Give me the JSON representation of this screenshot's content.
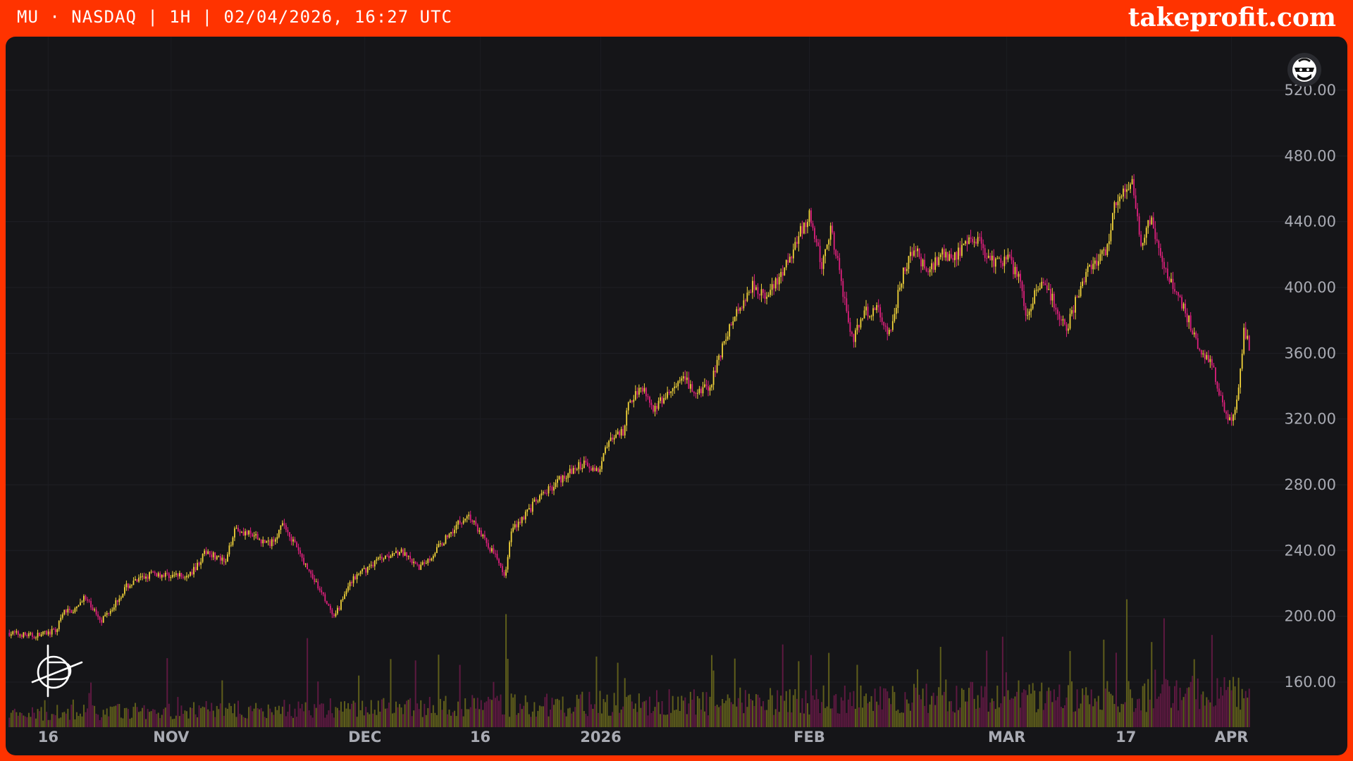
{
  "header": {
    "ticker_line": "MU · NASDAQ | 1H | 02/04/2026, 16:27 UTC",
    "brand": "takeprofit.com"
  },
  "colors": {
    "frame": "#ff3300",
    "background": "#151518",
    "up_candle": "#f5d63a",
    "down_candle": "#e0207e",
    "up_volume": "#6b6a1c",
    "down_volume": "#6a1a48",
    "axis_text": "#a9abb3"
  },
  "icons": {
    "top_right": "ninja-avatar-icon",
    "bottom_left": "takeprofit-logo-icon"
  },
  "chart_data": {
    "type": "candlestick",
    "interval": "1H",
    "grid": true,
    "y_axis_position": "right",
    "ylim": [
      140,
      530
    ],
    "yticks": [
      520,
      480,
      440,
      400,
      360,
      320,
      280,
      240,
      200,
      160
    ],
    "ytick_labels": [
      "520.00",
      "480.00",
      "440.00",
      "400.00",
      "360.00",
      "320.00",
      "280.00",
      "240.00",
      "200.00",
      "160.00"
    ],
    "xticks": [
      {
        "label": "16",
        "t": 0.032
      },
      {
        "label": "NOV",
        "t": 0.131
      },
      {
        "label": "DEC",
        "t": 0.287
      },
      {
        "label": "16",
        "t": 0.38
      },
      {
        "label": "2026",
        "t": 0.477
      },
      {
        "label": "FEB",
        "t": 0.645
      },
      {
        "label": "MAR",
        "t": 0.804
      },
      {
        "label": "17",
        "t": 0.9
      },
      {
        "label": "APR",
        "t": 0.985
      }
    ],
    "price_path": [
      {
        "t": 0.0,
        "p": 190
      },
      {
        "t": 0.02,
        "p": 188
      },
      {
        "t": 0.038,
        "p": 191
      },
      {
        "t": 0.045,
        "p": 203
      },
      {
        "t": 0.055,
        "p": 204
      },
      {
        "t": 0.06,
        "p": 212
      },
      {
        "t": 0.075,
        "p": 198
      },
      {
        "t": 0.085,
        "p": 207
      },
      {
        "t": 0.095,
        "p": 218
      },
      {
        "t": 0.115,
        "p": 226
      },
      {
        "t": 0.13,
        "p": 225
      },
      {
        "t": 0.145,
        "p": 224
      },
      {
        "t": 0.16,
        "p": 240
      },
      {
        "t": 0.175,
        "p": 232
      },
      {
        "t": 0.182,
        "p": 254
      },
      {
        "t": 0.21,
        "p": 244
      },
      {
        "t": 0.222,
        "p": 256
      },
      {
        "t": 0.24,
        "p": 230
      },
      {
        "t": 0.255,
        "p": 210
      },
      {
        "t": 0.262,
        "p": 198
      },
      {
        "t": 0.275,
        "p": 221
      },
      {
        "t": 0.3,
        "p": 236
      },
      {
        "t": 0.315,
        "p": 240
      },
      {
        "t": 0.33,
        "p": 229
      },
      {
        "t": 0.34,
        "p": 236
      },
      {
        "t": 0.36,
        "p": 255
      },
      {
        "t": 0.37,
        "p": 262
      },
      {
        "t": 0.385,
        "p": 245
      },
      {
        "t": 0.4,
        "p": 226
      },
      {
        "t": 0.405,
        "p": 252
      },
      {
        "t": 0.425,
        "p": 270
      },
      {
        "t": 0.445,
        "p": 284
      },
      {
        "t": 0.465,
        "p": 294
      },
      {
        "t": 0.475,
        "p": 287
      },
      {
        "t": 0.48,
        "p": 304
      },
      {
        "t": 0.495,
        "p": 312
      },
      {
        "t": 0.5,
        "p": 330
      },
      {
        "t": 0.51,
        "p": 341
      },
      {
        "t": 0.52,
        "p": 326
      },
      {
        "t": 0.535,
        "p": 338
      },
      {
        "t": 0.545,
        "p": 344
      },
      {
        "t": 0.555,
        "p": 333
      },
      {
        "t": 0.56,
        "p": 341
      },
      {
        "t": 0.565,
        "p": 337
      },
      {
        "t": 0.57,
        "p": 354
      },
      {
        "t": 0.585,
        "p": 383
      },
      {
        "t": 0.6,
        "p": 403
      },
      {
        "t": 0.61,
        "p": 393
      },
      {
        "t": 0.625,
        "p": 410
      },
      {
        "t": 0.635,
        "p": 430
      },
      {
        "t": 0.645,
        "p": 443
      },
      {
        "t": 0.655,
        "p": 413
      },
      {
        "t": 0.662,
        "p": 436
      },
      {
        "t": 0.67,
        "p": 406
      },
      {
        "t": 0.68,
        "p": 368
      },
      {
        "t": 0.69,
        "p": 385
      },
      {
        "t": 0.7,
        "p": 386
      },
      {
        "t": 0.71,
        "p": 371
      },
      {
        "t": 0.72,
        "p": 408
      },
      {
        "t": 0.73,
        "p": 424
      },
      {
        "t": 0.74,
        "p": 408
      },
      {
        "t": 0.75,
        "p": 420
      },
      {
        "t": 0.76,
        "p": 418
      },
      {
        "t": 0.77,
        "p": 424
      },
      {
        "t": 0.78,
        "p": 431
      },
      {
        "t": 0.79,
        "p": 416
      },
      {
        "t": 0.805,
        "p": 417
      },
      {
        "t": 0.815,
        "p": 405
      },
      {
        "t": 0.82,
        "p": 383
      },
      {
        "t": 0.83,
        "p": 401
      },
      {
        "t": 0.84,
        "p": 395
      },
      {
        "t": 0.852,
        "p": 373
      },
      {
        "t": 0.86,
        "p": 393
      },
      {
        "t": 0.87,
        "p": 412
      },
      {
        "t": 0.885,
        "p": 424
      },
      {
        "t": 0.89,
        "p": 448
      },
      {
        "t": 0.9,
        "p": 458
      },
      {
        "t": 0.905,
        "p": 466
      },
      {
        "t": 0.912,
        "p": 426
      },
      {
        "t": 0.92,
        "p": 441
      },
      {
        "t": 0.93,
        "p": 412
      },
      {
        "t": 0.94,
        "p": 398
      },
      {
        "t": 0.95,
        "p": 381
      },
      {
        "t": 0.96,
        "p": 362
      },
      {
        "t": 0.97,
        "p": 351
      },
      {
        "t": 0.98,
        "p": 322
      },
      {
        "t": 0.985,
        "p": 318
      },
      {
        "t": 0.99,
        "p": 331
      },
      {
        "t": 0.995,
        "p": 373
      },
      {
        "t": 1.0,
        "p": 363
      }
    ]
  }
}
